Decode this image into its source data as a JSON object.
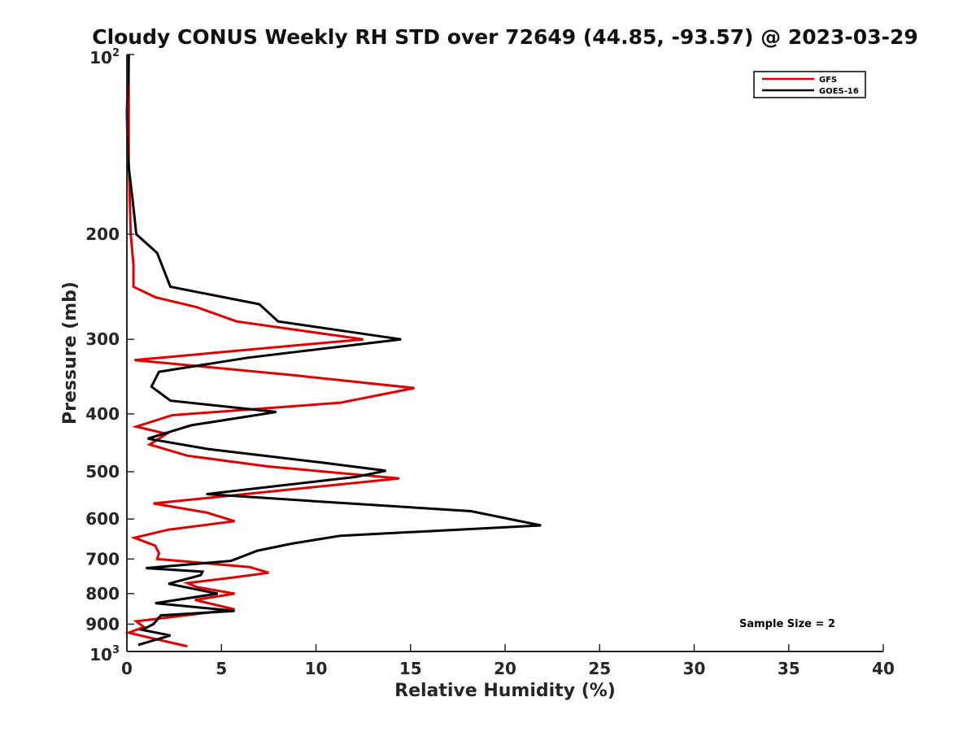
{
  "chart_data": {
    "type": "line",
    "title": "Cloudy CONUS Weekly RH STD over 72649 (44.85, -93.57) @ 2023-03-29",
    "xlabel": "Relative Humidity (%)",
    "ylabel": "Pressure (mb)",
    "xlim": [
      0,
      40
    ],
    "ylim": [
      100,
      1000
    ],
    "y_scale": "log",
    "y_reversed": true,
    "x_ticks": [
      "0",
      "5",
      "10",
      "15",
      "20",
      "25",
      "30",
      "35",
      "40"
    ],
    "x_tick_values": [
      0,
      5,
      10,
      15,
      20,
      25,
      30,
      35,
      40
    ],
    "y_ticks": [
      {
        "value": 100,
        "base": "10",
        "exp": "2"
      },
      {
        "value": 200,
        "label": "200"
      },
      {
        "value": 300,
        "label": "300"
      },
      {
        "value": 400,
        "label": "400"
      },
      {
        "value": 500,
        "label": "500"
      },
      {
        "value": 600,
        "label": "600"
      },
      {
        "value": 700,
        "label": "700"
      },
      {
        "value": 800,
        "label": "800"
      },
      {
        "value": 900,
        "label": "900"
      },
      {
        "value": 1000,
        "base": "10",
        "exp": "3"
      }
    ],
    "legend_position": "top-right",
    "annotation": "Sample Size = 2",
    "grid": false,
    "series": [
      {
        "name": "GFS",
        "color": "#e00000",
        "points": [
          [
            0.1,
            100
          ],
          [
            0.1,
            125
          ],
          [
            0.1,
            150
          ],
          [
            0.15,
            175
          ],
          [
            0.2,
            200
          ],
          [
            0.35,
            225
          ],
          [
            0.35,
            245
          ],
          [
            1.5,
            255
          ],
          [
            3.7,
            265
          ],
          [
            5.8,
            280
          ],
          [
            12.5,
            300
          ],
          [
            0.4,
            325
          ],
          [
            9.0,
            345
          ],
          [
            15.2,
            362
          ],
          [
            11.3,
            383
          ],
          [
            2.4,
            402
          ],
          [
            0.5,
            420
          ],
          [
            2.1,
            432
          ],
          [
            1.2,
            450
          ],
          [
            3.2,
            470
          ],
          [
            7.5,
            490
          ],
          [
            14.4,
            513
          ],
          [
            1.4,
            565
          ],
          [
            4.2,
            585
          ],
          [
            5.7,
            605
          ],
          [
            2.2,
            625
          ],
          [
            0.4,
            645
          ],
          [
            1.5,
            665
          ],
          [
            1.7,
            685
          ],
          [
            1.6,
            700
          ],
          [
            6.5,
            722
          ],
          [
            7.5,
            738
          ],
          [
            5.6,
            752
          ],
          [
            3.2,
            768
          ],
          [
            3.7,
            780
          ],
          [
            5.7,
            800
          ],
          [
            3.6,
            820
          ],
          [
            5.7,
            850
          ],
          [
            0.5,
            890
          ],
          [
            0.9,
            910
          ],
          [
            0.1,
            930
          ],
          [
            1.3,
            950
          ],
          [
            3.2,
            980
          ]
        ]
      },
      {
        "name": "GOES-16",
        "color": "#000000",
        "points": [
          [
            0.1,
            100
          ],
          [
            0.0,
            125
          ],
          [
            0.05,
            150
          ],
          [
            0.3,
            175
          ],
          [
            0.5,
            200
          ],
          [
            1.6,
            215
          ],
          [
            2.3,
            245
          ],
          [
            7.0,
            262
          ],
          [
            8.0,
            280
          ],
          [
            14.5,
            300
          ],
          [
            6.4,
            322
          ],
          [
            1.7,
            340
          ],
          [
            1.3,
            360
          ],
          [
            2.3,
            380
          ],
          [
            7.9,
            397
          ],
          [
            3.4,
            418
          ],
          [
            1.1,
            440
          ],
          [
            4.3,
            458
          ],
          [
            10.2,
            482
          ],
          [
            13.7,
            498
          ],
          [
            12.1,
            510
          ],
          [
            4.2,
            545
          ],
          [
            9.9,
            560
          ],
          [
            18.2,
            582
          ],
          [
            21.9,
            615
          ],
          [
            11.3,
            640
          ],
          [
            8.7,
            660
          ],
          [
            6.9,
            678
          ],
          [
            5.5,
            705
          ],
          [
            1.0,
            725
          ],
          [
            4.0,
            735
          ],
          [
            3.9,
            745
          ],
          [
            2.2,
            770
          ],
          [
            4.8,
            800
          ],
          [
            1.5,
            830
          ],
          [
            5.7,
            855
          ],
          [
            1.8,
            870
          ],
          [
            1.4,
            900
          ],
          [
            0.8,
            920
          ],
          [
            2.3,
            940
          ],
          [
            0.6,
            975
          ]
        ]
      }
    ]
  }
}
